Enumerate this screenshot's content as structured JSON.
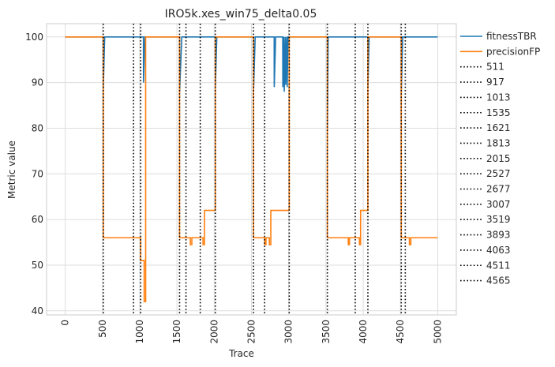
{
  "chart_data": {
    "type": "line",
    "title": "IRO5k.xes_win75_delta0.05",
    "xlabel": "Trace",
    "ylabel": "Metric value",
    "xlim": [
      -250,
      5250
    ],
    "ylim": [
      39.1,
      102.9
    ],
    "xticks": [
      0,
      500,
      1000,
      1500,
      2000,
      2500,
      3000,
      3500,
      4000,
      4500,
      5000
    ],
    "yticks": [
      40,
      50,
      60,
      70,
      80,
      90,
      100
    ],
    "grid": true,
    "legend_position": "outside-right",
    "series": [
      {
        "name": "fitnessTBR",
        "color": "#1f77b4",
        "points": [
          [
            0,
            100
          ],
          [
            500,
            100
          ],
          [
            510,
            100
          ],
          [
            511,
            88.5
          ],
          [
            530,
            100
          ],
          [
            1013,
            100
          ],
          [
            1050,
            100
          ],
          [
            1051,
            90
          ],
          [
            1070,
            100
          ],
          [
            1535,
            100
          ],
          [
            1536,
            88
          ],
          [
            1565,
            100
          ],
          [
            2015,
            100
          ],
          [
            2016,
            89
          ],
          [
            2035,
            100
          ],
          [
            2527,
            100
          ],
          [
            2528,
            88
          ],
          [
            2550,
            100
          ],
          [
            2805,
            100
          ],
          [
            2806,
            89
          ],
          [
            2825,
            100
          ],
          [
            2920,
            100
          ],
          [
            2921,
            89
          ],
          [
            2935,
            100
          ],
          [
            2940,
            88
          ],
          [
            2955,
            100
          ],
          [
            2960,
            89.5
          ],
          [
            2975,
            100
          ],
          [
            2980,
            89
          ],
          [
            2990,
            100
          ],
          [
            3519,
            100
          ],
          [
            3520,
            80
          ],
          [
            3530,
            100
          ],
          [
            4063,
            100
          ],
          [
            4064,
            89
          ],
          [
            4080,
            100
          ],
          [
            4511,
            100
          ],
          [
            4512,
            88
          ],
          [
            4530,
            100
          ],
          [
            5000,
            100
          ]
        ]
      },
      {
        "name": "precisionFP",
        "color": "#ff7f0e",
        "points": [
          [
            0,
            100
          ],
          [
            511,
            100
          ],
          [
            511,
            56
          ],
          [
            1013,
            56
          ],
          [
            1013,
            51
          ],
          [
            1060,
            51
          ],
          [
            1060,
            42
          ],
          [
            1080,
            42
          ],
          [
            1080,
            100
          ],
          [
            1535,
            100
          ],
          [
            1535,
            56
          ],
          [
            1680,
            56
          ],
          [
            1680,
            54.5
          ],
          [
            1700,
            54.5
          ],
          [
            1700,
            56
          ],
          [
            1850,
            56
          ],
          [
            1850,
            54.5
          ],
          [
            1870,
            54.5
          ],
          [
            1870,
            62
          ],
          [
            2015,
            62
          ],
          [
            2015,
            100
          ],
          [
            2527,
            100
          ],
          [
            2527,
            56
          ],
          [
            2677,
            56
          ],
          [
            2677,
            54.5
          ],
          [
            2695,
            54.5
          ],
          [
            2695,
            56
          ],
          [
            2740,
            56
          ],
          [
            2740,
            54.5
          ],
          [
            2760,
            54.5
          ],
          [
            2760,
            62
          ],
          [
            3007,
            62
          ],
          [
            3007,
            100
          ],
          [
            3519,
            100
          ],
          [
            3519,
            56
          ],
          [
            3800,
            56
          ],
          [
            3800,
            54.5
          ],
          [
            3815,
            54.5
          ],
          [
            3815,
            56
          ],
          [
            3950,
            56
          ],
          [
            3950,
            54.5
          ],
          [
            3965,
            54.5
          ],
          [
            3965,
            62
          ],
          [
            4063,
            62
          ],
          [
            4063,
            100
          ],
          [
            4511,
            100
          ],
          [
            4511,
            56
          ],
          [
            4620,
            56
          ],
          [
            4620,
            54.5
          ],
          [
            4640,
            54.5
          ],
          [
            4640,
            56
          ],
          [
            5000,
            56
          ]
        ]
      }
    ],
    "vlines": {
      "color": "#000000",
      "style": "dotted",
      "values": [
        511,
        917,
        1013,
        1535,
        1621,
        1813,
        2015,
        2527,
        2677,
        3007,
        3519,
        3893,
        4063,
        4511,
        4565
      ],
      "labels": [
        "511",
        "917",
        "1013",
        "1535",
        "1621",
        "1813",
        "2015",
        "2527",
        "2677",
        "3007",
        "3519",
        "3893",
        "4063",
        "4511",
        "4565"
      ]
    }
  }
}
